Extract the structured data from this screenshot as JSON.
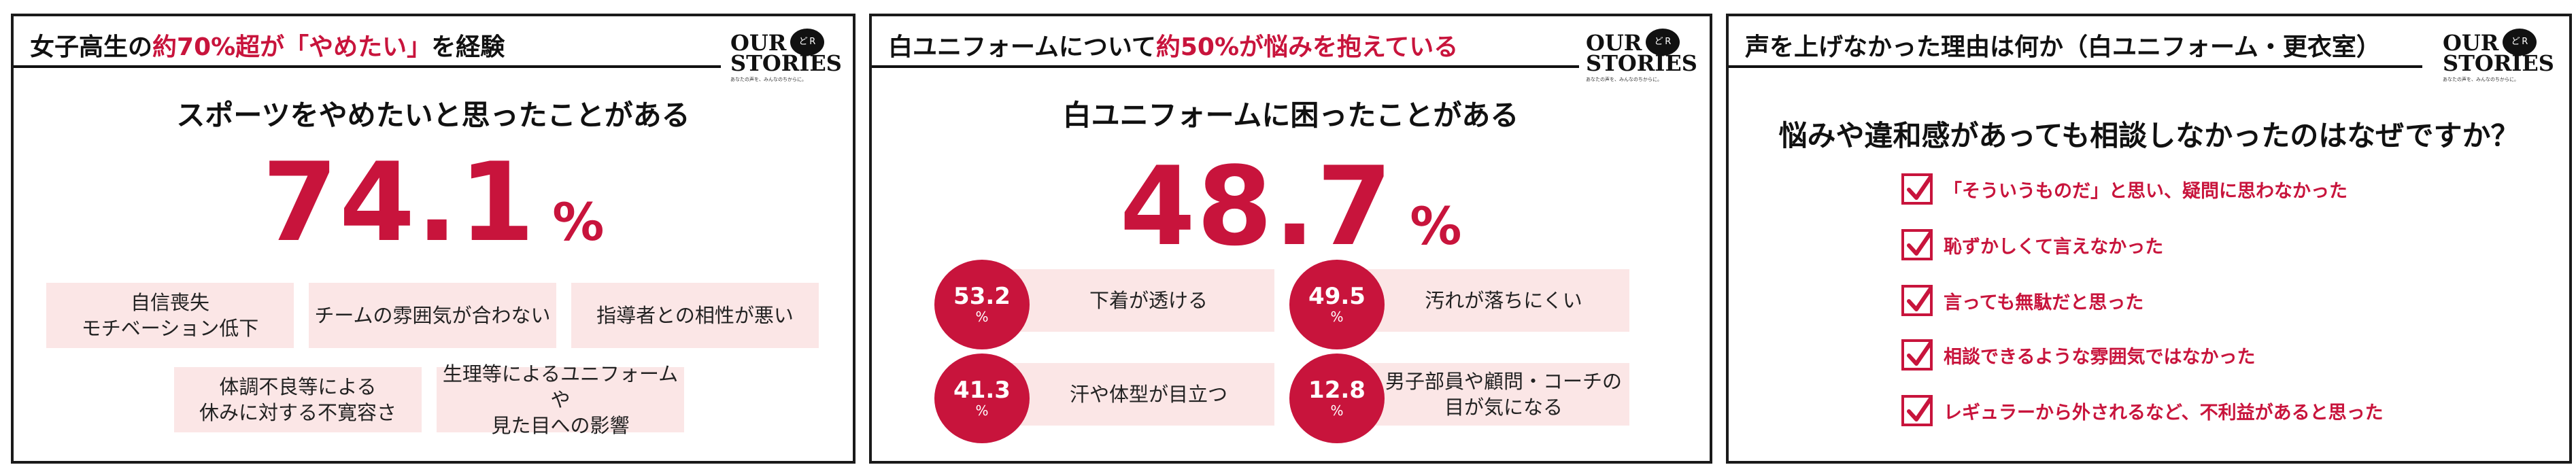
{
  "colors": {
    "accent": "#c8143c",
    "box_bg": "#fbe6e6",
    "text": "#111111"
  },
  "logo": {
    "word1": "OUR",
    "word2": "STORIES",
    "bubble": "ど R",
    "tagline": "あなたの声を、みんなのちからに。"
  },
  "panel1": {
    "title_pre": "女子高生の",
    "title_em": "約70%超が「やめたい」",
    "title_post": "を経験",
    "question": "スポーツをやめたいと思ったことがある",
    "big_value": "74.1",
    "big_unit": "%",
    "reasons": [
      "自信喪失\nモチベーション低下",
      "チームの雰囲気が合わない",
      "指導者との相性が悪い",
      "体調不良等による\n休みに対する不寛容さ",
      "生理等によるユニフォームや\n見た目への影響"
    ]
  },
  "panel2": {
    "title_pre": "白ユニフォームについて",
    "title_em": "約50%が悩みを抱えている",
    "title_post": "",
    "question": "白ユニフォームに困ったことがある",
    "big_value": "48.7",
    "big_unit": "%",
    "stats": [
      {
        "value": "53.2",
        "unit": "%",
        "label": "下着が透ける"
      },
      {
        "value": "49.5",
        "unit": "%",
        "label": "汚れが落ちにくい"
      },
      {
        "value": "41.3",
        "unit": "%",
        "label": "汗や体型が目立つ"
      },
      {
        "value": "12.8",
        "unit": "%",
        "label": "男子部員や顧問・コーチの\n目が気になる"
      }
    ]
  },
  "panel3": {
    "title": "声を上げなかった理由は何か（白ユニフォーム・更衣室）",
    "question": "悩みや違和感があっても相談しなかったのはなぜですか？",
    "reasons": [
      "「そういうものだ」と思い、疑問に思わなかった",
      "恥ずかしくて言えなかった",
      "言っても無駄だと思った",
      "相談できるような雰囲気ではなかった",
      "レギュラーから外されるなど、不利益があると思った"
    ]
  }
}
